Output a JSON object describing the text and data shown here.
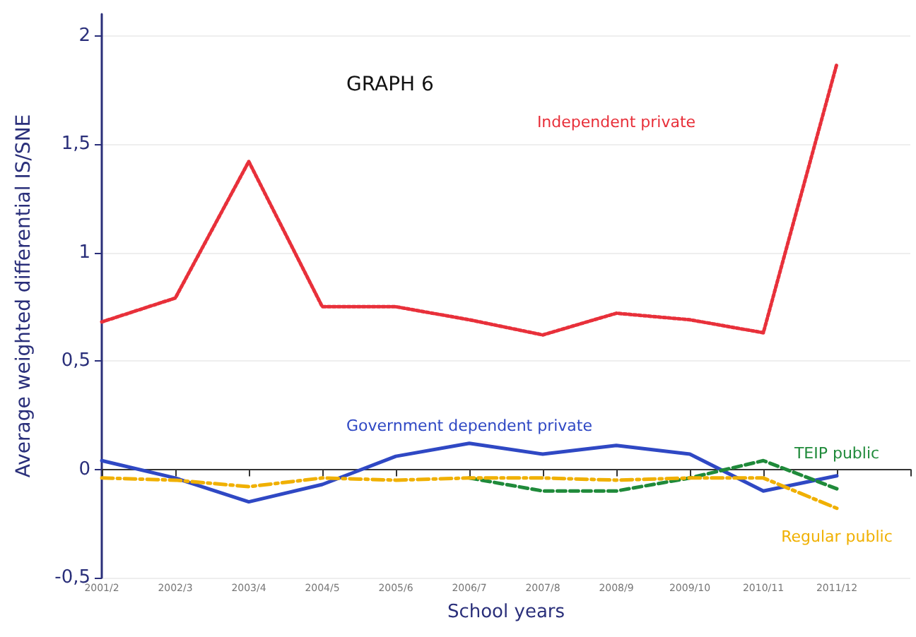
{
  "chart_data": {
    "type": "line",
    "title": "GRAPH 6",
    "xlabel": "School years",
    "ylabel": "Average weighted differential IS/SNE",
    "categories": [
      "2001/2",
      "2002/3",
      "2003/4",
      "2004/5",
      "2005/6",
      "2006/7",
      "2007/8",
      "2008/9",
      "2009/10",
      "2010/11",
      "2011/12",
      null
    ],
    "series": [
      {
        "name": "Independent private",
        "color": "#e8303a",
        "line_style": "dotted",
        "values": [
          0.68,
          0.79,
          1.42,
          0.75,
          0.75,
          0.69,
          0.62,
          0.72,
          0.69,
          0.63,
          1.87,
          null
        ]
      },
      {
        "name": "Government dependent private",
        "color": "#2f48c4",
        "line_style": "solid",
        "values": [
          0.04,
          -0.04,
          -0.15,
          -0.07,
          0.06,
          0.12,
          0.07,
          0.11,
          0.07,
          -0.1,
          -0.03,
          null
        ]
      },
      {
        "name": "TEIP public",
        "color": "#1f8a3a",
        "line_style": "dashed",
        "values": [
          null,
          null,
          null,
          null,
          null,
          -0.04,
          -0.1,
          -0.1,
          -0.04,
          0.04,
          -0.09,
          null
        ]
      },
      {
        "name": "Regular public",
        "color": "#f0b000",
        "line_style": "dashed",
        "values": [
          -0.04,
          -0.05,
          -0.08,
          -0.04,
          -0.05,
          -0.04,
          -0.04,
          -0.05,
          -0.04,
          -0.04,
          -0.18,
          null
        ]
      }
    ],
    "ylim": [
      -0.5,
      2.1
    ],
    "yticks": [
      {
        "value": -0.5,
        "label": "-0,5"
      },
      0,
      {
        "value": 0.5,
        "label": "0,5"
      },
      1,
      {
        "value": 1.5,
        "label": "1,5"
      },
      2
    ],
    "grid": "y",
    "legend": false,
    "marker": "none"
  }
}
